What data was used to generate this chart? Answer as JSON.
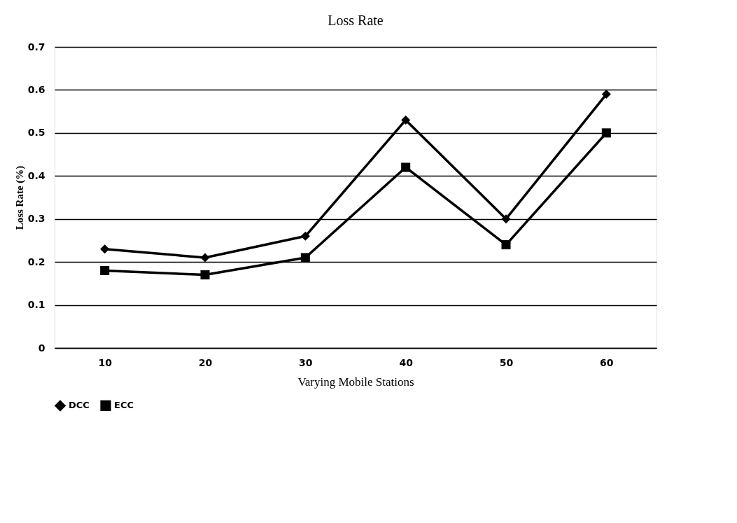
{
  "chart_data": {
    "type": "line",
    "title": "Loss Rate",
    "xlabel": "Varying Mobile Stations",
    "ylabel": "Loss Rate (%)",
    "categories": [
      "10",
      "20",
      "30",
      "40",
      "50",
      "60"
    ],
    "series": [
      {
        "name": "DCC",
        "color": "#000000",
        "marker": "diamond",
        "values": [
          0.23,
          0.21,
          0.26,
          0.53,
          0.3,
          0.59
        ]
      },
      {
        "name": "ECC",
        "color": "#000000",
        "marker": "square",
        "values": [
          0.18,
          0.17,
          0.21,
          0.42,
          0.24,
          0.5
        ]
      }
    ],
    "ylim": [
      0,
      0.7
    ],
    "yticks": [
      0,
      0.1,
      0.2,
      0.3,
      0.4,
      0.5,
      0.6,
      0.7
    ],
    "grid": "y",
    "legend": "bottom",
    "line_style": "solid"
  }
}
